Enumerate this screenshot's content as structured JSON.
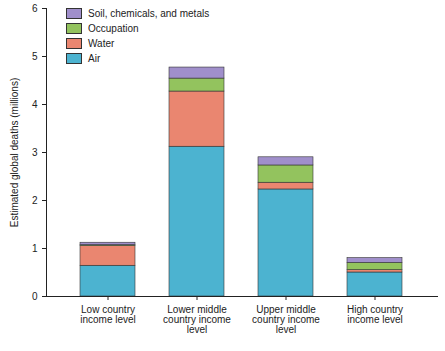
{
  "chart_data": {
    "type": "bar",
    "stacked": true,
    "ylabel": "Estimated global deaths (millions)",
    "categories": [
      "Low country income level",
      "Lower middle country income level",
      "Upper middle country income level",
      "High country income level"
    ],
    "series": [
      {
        "name": "Air",
        "color": "#4cb3d0",
        "values": [
          0.64,
          3.12,
          2.23,
          0.5
        ]
      },
      {
        "name": "Water",
        "color": "#ea8670",
        "values": [
          0.41,
          1.15,
          0.14,
          0.05
        ]
      },
      {
        "name": "Occupation",
        "color": "#93c35e",
        "values": [
          0.02,
          0.27,
          0.36,
          0.15
        ]
      },
      {
        "name": "Soil, chemicals, and metals",
        "color": "#a08fcb",
        "values": [
          0.05,
          0.23,
          0.17,
          0.1
        ]
      }
    ],
    "ylim": [
      0,
      6
    ],
    "yticks": [
      0,
      1,
      2,
      3,
      4,
      5,
      6
    ],
    "grid": false,
    "legend": "top-left"
  }
}
